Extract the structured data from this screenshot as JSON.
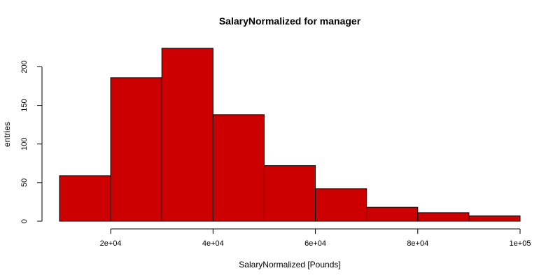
{
  "chart_data": {
    "type": "bar",
    "title": "SalaryNormalized for manager",
    "xlabel": "SalaryNormalized [Pounds]",
    "ylabel": "entries",
    "bar_color": "#cc0000",
    "bins": [
      {
        "start": 10000,
        "end": 20000,
        "count": 59
      },
      {
        "start": 20000,
        "end": 30000,
        "count": 186
      },
      {
        "start": 30000,
        "end": 40000,
        "count": 224
      },
      {
        "start": 40000,
        "end": 50000,
        "count": 138
      },
      {
        "start": 50000,
        "end": 60000,
        "count": 72
      },
      {
        "start": 60000,
        "end": 70000,
        "count": 42
      },
      {
        "start": 70000,
        "end": 80000,
        "count": 18
      },
      {
        "start": 80000,
        "end": 90000,
        "count": 11
      },
      {
        "start": 90000,
        "end": 100000,
        "count": 7
      }
    ],
    "xlim": [
      10000,
      100000
    ],
    "ylim": [
      0,
      224
    ],
    "x_ticks": [
      {
        "value": 20000,
        "label": "2e+04"
      },
      {
        "value": 40000,
        "label": "4e+04"
      },
      {
        "value": 60000,
        "label": "6e+04"
      },
      {
        "value": 80000,
        "label": "8e+04"
      },
      {
        "value": 100000,
        "label": "1e+05"
      }
    ],
    "y_ticks": [
      {
        "value": 0,
        "label": "0"
      },
      {
        "value": 50,
        "label": "50"
      },
      {
        "value": 100,
        "label": "100"
      },
      {
        "value": 150,
        "label": "150"
      },
      {
        "value": 200,
        "label": "200"
      }
    ],
    "grid": false,
    "legend": "none"
  }
}
